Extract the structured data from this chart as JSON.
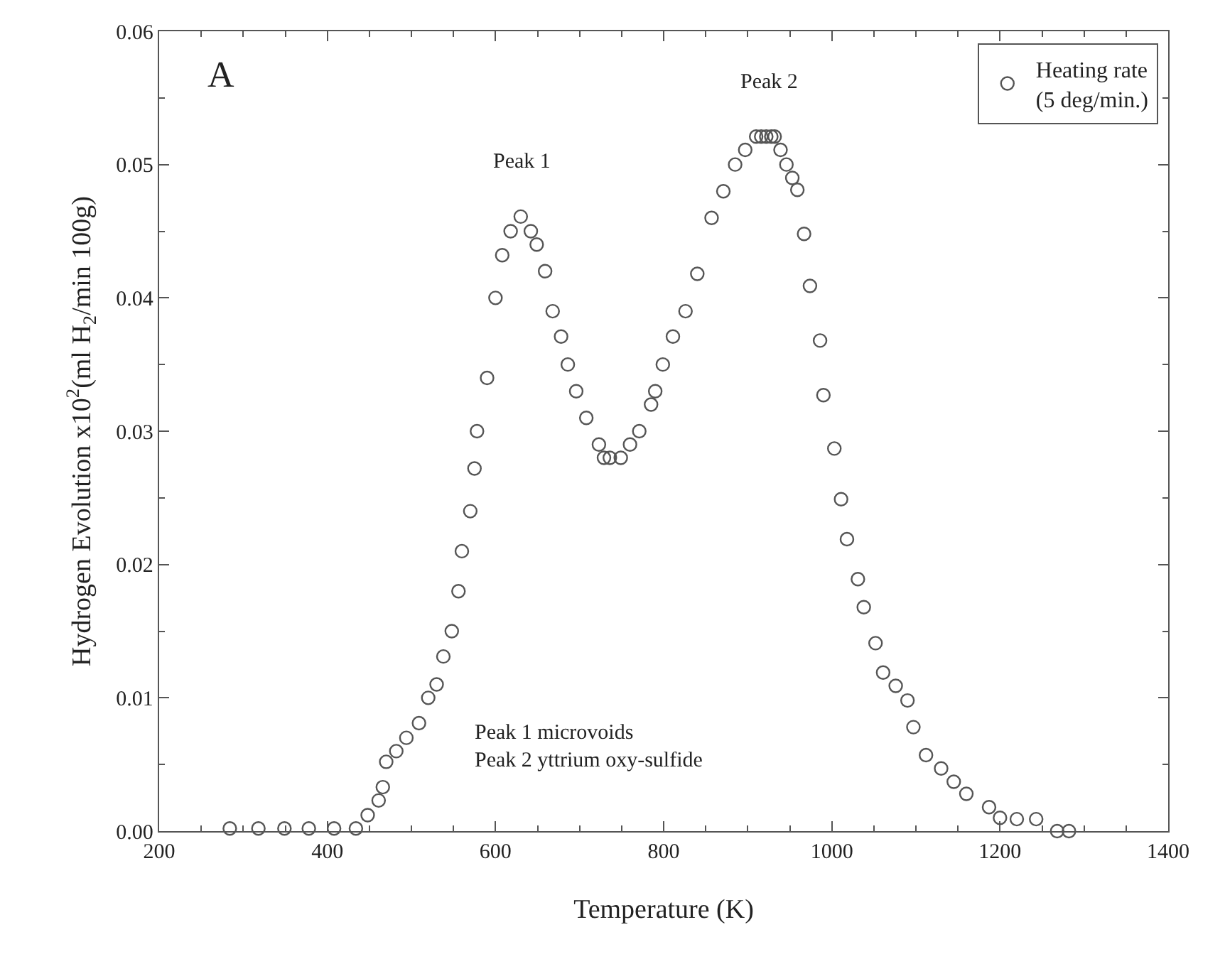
{
  "chart_data": {
    "type": "scatter",
    "xlabel": "Temperature (K)",
    "ylabel": "Hydrogen Evolution x10$^{2}$(ml H$_{2}$/min 100g)",
    "xlim": [
      200,
      1400
    ],
    "xticks": [
      200,
      400,
      600,
      800,
      1000,
      1200,
      1400
    ],
    "ylim": [
      0,
      0.06
    ],
    "yticks": [
      {
        "value": 0,
        "label": "0.00"
      },
      0.01,
      0.02,
      0.03,
      0.04,
      0.05,
      0.06
    ],
    "legend": "top right",
    "marker": "circle",
    "annotations": [
      "A",
      {
        "text": "Peak 1",
        "x": 631,
        "y": 0.0461
      },
      {
        "text": "Peak 2",
        "x": 925,
        "y": 0.0521
      },
      "Peak 1 microvoids\nPeak 2 yttrium oxy-sulfide"
    ],
    "series": [
      {
        "name": "Heating rate\n(5 deg/min.)",
        "color": "#555555",
        "x": [
          284,
          318,
          349,
          378,
          408,
          434,
          448,
          461,
          466,
          470,
          482,
          494,
          509,
          520,
          530,
          538,
          548,
          556,
          560,
          570,
          575,
          578,
          590,
          600,
          608,
          618,
          630,
          642,
          649,
          659,
          668,
          678,
          686,
          696,
          708,
          723,
          729,
          736,
          749,
          760,
          771,
          785,
          790,
          799,
          811,
          826,
          840,
          857,
          871,
          885,
          897,
          910,
          916,
          922,
          928,
          932,
          939,
          946,
          953,
          959,
          967,
          974,
          986,
          990,
          1003,
          1011,
          1018,
          1031,
          1038,
          1052,
          1061,
          1076,
          1090,
          1097,
          1112,
          1130,
          1145,
          1160,
          1187,
          1200,
          1220,
          1243,
          1268,
          1282
        ],
        "values": [
          0.0002,
          0.0002,
          0.0002,
          0.0002,
          0.0002,
          0.0002,
          0.0012,
          0.0023,
          0.0033,
          0.0052,
          0.006,
          0.007,
          0.0081,
          0.01,
          0.011,
          0.0131,
          0.015,
          0.018,
          0.021,
          0.024,
          0.0272,
          0.03,
          0.034,
          0.04,
          0.0432,
          0.045,
          0.0461,
          0.045,
          0.044,
          0.042,
          0.039,
          0.0371,
          0.035,
          0.033,
          0.031,
          0.029,
          0.028,
          0.028,
          0.028,
          0.029,
          0.03,
          0.032,
          0.033,
          0.035,
          0.0371,
          0.039,
          0.0418,
          0.046,
          0.048,
          0.05,
          0.0511,
          0.0521,
          0.0521,
          0.0521,
          0.0521,
          0.0521,
          0.0511,
          0.05,
          0.049,
          0.0481,
          0.0448,
          0.0409,
          0.0368,
          0.0327,
          0.0287,
          0.0249,
          0.0219,
          0.0189,
          0.0168,
          0.0141,
          0.0119,
          0.0109,
          0.0098,
          0.0078,
          0.0057,
          0.0047,
          0.0037,
          0.0028,
          0.0018,
          0.001,
          0.0009,
          0.0009,
          0,
          0
        ]
      }
    ]
  }
}
